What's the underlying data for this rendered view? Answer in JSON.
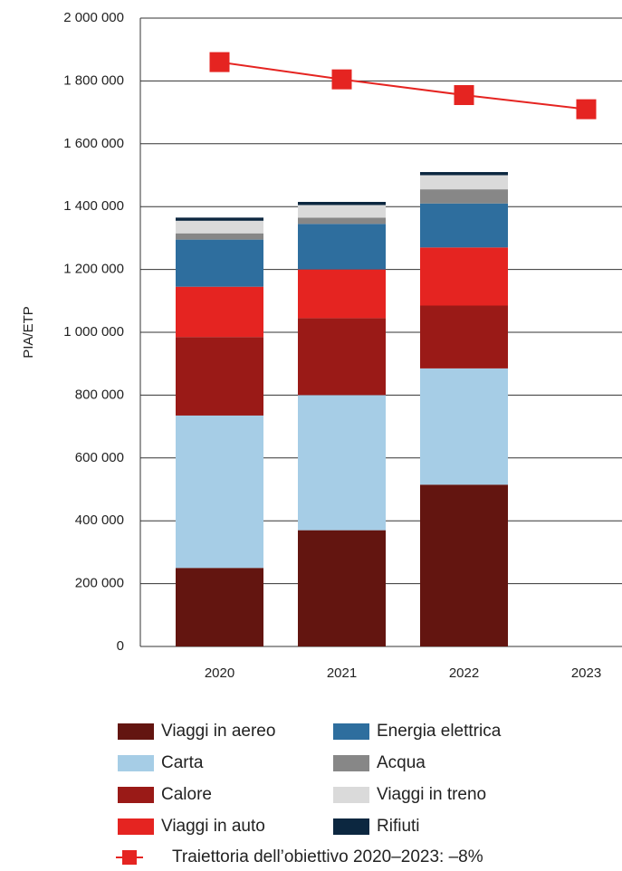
{
  "chart_data": {
    "type": "bar",
    "stacked": true,
    "y_label": "PIA/ETP",
    "categories": [
      "2020",
      "2021",
      "2022",
      "2023"
    ],
    "ylim": [
      0,
      2000000
    ],
    "yticks": [
      0,
      {
        "value": 200000,
        "label": "200 000"
      },
      {
        "value": 400000,
        "label": "400 000"
      },
      {
        "value": 600000,
        "label": "600 000"
      },
      {
        "value": 800000,
        "label": "800 000"
      },
      {
        "value": 1000000,
        "label": "1 000 000"
      },
      {
        "value": 1200000,
        "label": "1 200 000"
      },
      {
        "value": 1400000,
        "label": "1 400 000"
      },
      {
        "value": 1600000,
        "label": "1 600 000"
      },
      {
        "value": 1800000,
        "label": "1 800 000"
      },
      {
        "value": 2000000,
        "label": "2 000 000"
      }
    ],
    "grid": true,
    "series": [
      {
        "name": "Viaggi in aereo",
        "color": "#631510",
        "values": [
          250000,
          370000,
          515000,
          null
        ]
      },
      {
        "name": "Carta",
        "color": "#a6cde6",
        "values": [
          485000,
          430000,
          370000,
          null
        ]
      },
      {
        "name": "Calore",
        "color": "#9a1a17",
        "values": [
          250000,
          245000,
          200000,
          null
        ]
      },
      {
        "name": "Viaggi in auto",
        "color": "#e52421",
        "values": [
          160000,
          155000,
          185000,
          null
        ]
      },
      {
        "name": "Energia elettrica",
        "color": "#2e6e9e",
        "values": [
          150000,
          145000,
          140000,
          null
        ]
      },
      {
        "name": "Acqua",
        "color": "#878787",
        "values": [
          20000,
          20000,
          45000,
          null
        ]
      },
      {
        "name": "Viaggi in treno",
        "color": "#dadada",
        "values": [
          40000,
          40000,
          45000,
          null
        ]
      },
      {
        "name": "Rifiuti",
        "color": "#0c2740",
        "values": [
          10000,
          10000,
          10000,
          null
        ]
      },
      {
        "name": "Traiettoria dell’obiettivo 2020–2023: –8%",
        "type": "line",
        "color": "#e52421",
        "values": [
          1860000,
          1805000,
          1755000,
          1710000
        ]
      }
    ]
  }
}
